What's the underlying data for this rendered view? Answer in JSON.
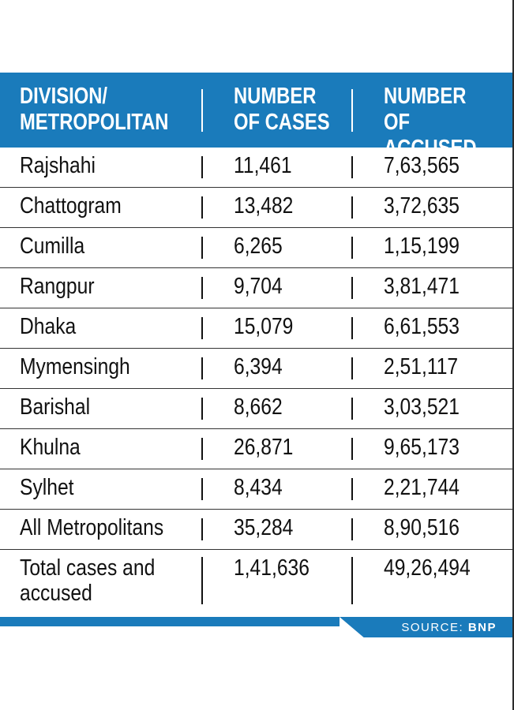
{
  "table": {
    "headers": [
      "DIVISION/\nMETROPOLITAN",
      "NUMBER\nOF CASES",
      "NUMBER OF\nACCUSED"
    ],
    "rows": [
      [
        "Rajshahi",
        "11,461",
        "7,63,565"
      ],
      [
        "Chattogram",
        "13,482",
        "3,72,635"
      ],
      [
        "Cumilla",
        "6,265",
        "1,15,199"
      ],
      [
        "Rangpur",
        "9,704",
        "3,81,471"
      ],
      [
        "Dhaka",
        "15,079",
        "6,61,553"
      ],
      [
        "Mymensingh",
        "6,394",
        "2,51,117"
      ],
      [
        "Barishal",
        "8,662",
        "3,03,521"
      ],
      [
        "Khulna",
        "26,871",
        "9,65,173"
      ],
      [
        "Sylhet",
        "8,434",
        "2,21,744"
      ],
      [
        "All Metropolitans",
        "35,284",
        "8,90,516"
      ],
      [
        "Total cases and\naccused",
        "1,41,636",
        "49,26,494"
      ]
    ]
  },
  "footer": {
    "source_label": "SOURCE:",
    "source_name": "BNP"
  },
  "colors": {
    "accent": "#1a7bbb",
    "text": "#111111"
  }
}
